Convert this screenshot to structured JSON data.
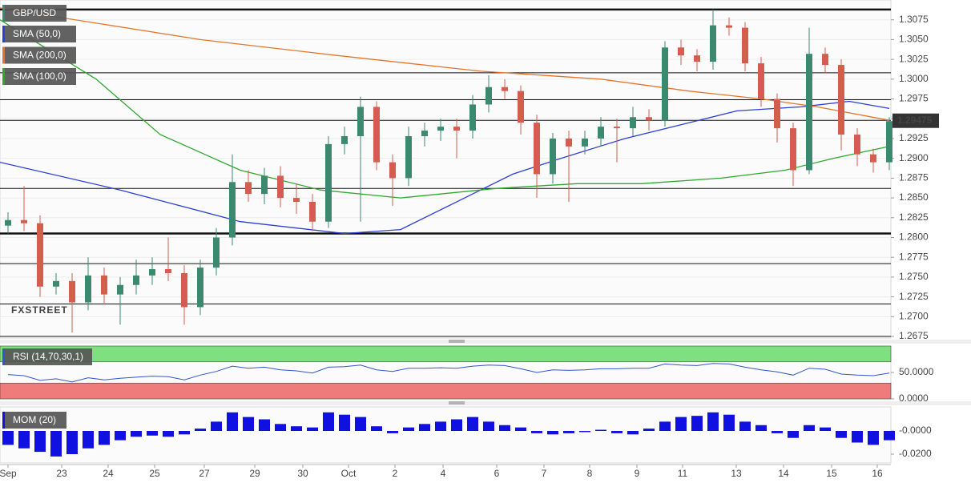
{
  "chart_data": {
    "type": "candlestick",
    "title": "GBP/USD",
    "watermark": "FXSTREET",
    "bull_color": "#3b8a6f",
    "bear_color": "#d55d4f",
    "open": [
      1.2815,
      1.2822,
      1.2818,
      1.2738,
      1.2745,
      1.2718,
      1.2752,
      1.2728,
      1.274,
      1.2752,
      1.276,
      1.2755,
      1.2712,
      1.2762,
      1.28,
      1.287,
      1.2855,
      1.2878,
      1.285,
      1.2845,
      1.282,
      1.2918,
      1.2928,
      1.2965,
      1.2895,
      1.2875,
      1.2928,
      1.2935,
      1.294,
      1.2935,
      1.2968,
      1.299,
      1.2985,
      1.2945,
      1.288,
      1.2925,
      1.2915,
      1.2925,
      1.294,
      1.2938,
      1.2952,
      1.2948,
      1.304,
      1.303,
      1.3022,
      1.3068,
      1.3065,
      1.302,
      1.2975,
      1.2938,
      1.2885,
      1.3032,
      1.3018,
      1.293,
      1.2905,
      1.2895
    ],
    "high": [
      1.2832,
      1.2865,
      1.2828,
      1.2755,
      1.2755,
      1.2775,
      1.2762,
      1.275,
      1.2772,
      1.2775,
      1.28,
      1.2765,
      1.2772,
      1.2812,
      1.2905,
      1.2885,
      1.2888,
      1.289,
      1.2868,
      1.2855,
      1.2928,
      1.294,
      1.2978,
      1.2972,
      1.2905,
      1.294,
      1.2945,
      1.295,
      1.295,
      1.298,
      1.3005,
      1.3,
      1.2992,
      1.2955,
      1.2932,
      1.2935,
      1.2935,
      1.2952,
      1.295,
      1.2965,
      1.2962,
      1.3048,
      1.305,
      1.3038,
      1.3088,
      1.3078,
      1.3072,
      1.3028,
      1.2982,
      1.2945,
      1.3065,
      1.304,
      1.3025,
      1.2938,
      1.2912,
      1.2952
    ],
    "low": [
      1.2805,
      1.2808,
      1.2725,
      1.2728,
      1.268,
      1.2708,
      1.2715,
      1.269,
      1.2728,
      1.274,
      1.2745,
      1.269,
      1.2702,
      1.2752,
      1.279,
      1.2845,
      1.2842,
      1.2838,
      1.283,
      1.2808,
      1.2812,
      1.2905,
      1.282,
      1.2885,
      1.284,
      1.2865,
      1.2915,
      1.2922,
      1.29,
      1.2925,
      1.2958,
      1.2975,
      1.293,
      1.285,
      1.2868,
      1.2845,
      1.2905,
      1.2915,
      1.2895,
      1.2928,
      1.2935,
      1.294,
      1.3018,
      1.301,
      1.3012,
      1.3055,
      1.301,
      1.2965,
      1.292,
      1.2865,
      1.288,
      1.3008,
      1.291,
      1.289,
      1.2882,
      1.2885
    ],
    "close": [
      1.2822,
      1.2818,
      1.2738,
      1.2745,
      1.2718,
      1.2752,
      1.2728,
      1.274,
      1.2752,
      1.276,
      1.2755,
      1.2712,
      1.2762,
      1.28,
      1.287,
      1.2855,
      1.2878,
      1.285,
      1.2845,
      1.282,
      1.2918,
      1.2928,
      1.2965,
      1.2895,
      1.2875,
      1.2928,
      1.2935,
      1.294,
      1.2935,
      1.2968,
      1.299,
      1.2985,
      1.2945,
      1.288,
      1.2925,
      1.2915,
      1.2925,
      1.294,
      1.2938,
      1.2952,
      1.2948,
      1.304,
      1.303,
      1.3022,
      1.3068,
      1.3065,
      1.302,
      1.2975,
      1.2938,
      1.2885,
      1.3032,
      1.3018,
      1.293,
      1.2905,
      1.2895,
      1.2947
    ],
    "series": [
      {
        "name": "SMA (50,0)",
        "color": "#2b3fd6",
        "x": [
          -0.5,
          7,
          14.5,
          21,
          24.5,
          28.5,
          31.5,
          34.5,
          38.5,
          42.5,
          45.5,
          49.5,
          52.5,
          55
        ],
        "values": [
          1.2895,
          1.286,
          1.282,
          1.2805,
          1.281,
          1.285,
          1.288,
          1.29,
          1.2925,
          1.2945,
          1.296,
          1.2965,
          1.2972,
          1.2963
        ]
      },
      {
        "name": "SMA (200,0)",
        "color": "#e8742a",
        "x": [
          -0.5,
          12,
          20.5,
          29.5,
          37,
          42.5,
          47,
          50.5,
          55
        ],
        "values": [
          1.309,
          1.305,
          1.303,
          1.301,
          1.3,
          1.2985,
          1.2975,
          1.2965,
          1.2948
        ]
      },
      {
        "name": "SMA (100,0)",
        "color": "#2ea82e",
        "x": [
          -0.5,
          5.5,
          9.5,
          14.5,
          19.5,
          24.5,
          30.5,
          35.5,
          39.5,
          44.5,
          48.5,
          51.5,
          55
        ],
        "values": [
          1.3075,
          1.3,
          1.293,
          1.2885,
          1.286,
          1.285,
          1.2862,
          1.2868,
          1.2868,
          1.2875,
          1.2885,
          1.29,
          1.2915
        ]
      }
    ],
    "levels": [
      {
        "value": 1.3088,
        "bold": true
      },
      {
        "value": 1.3008,
        "bold": false
      },
      {
        "value": 1.2974,
        "bold": false
      },
      {
        "value": 1.2948,
        "bold": false
      },
      {
        "value": 1.2862,
        "bold": false
      },
      {
        "value": 1.2805,
        "bold": true
      },
      {
        "value": 1.2767,
        "bold": false
      },
      {
        "value": 1.2716,
        "bold": false
      },
      {
        "value": 1.2675,
        "bold": false
      }
    ],
    "last_price": {
      "value": 1.29475,
      "label": "1.29475"
    },
    "ylim": [
      1.2673,
      1.31
    ],
    "yticks": [
      1.3075,
      {
        "value": 1.305,
        "label": "1.3050"
      },
      1.3025,
      {
        "value": 1.3,
        "label": "1.3000"
      },
      1.2975,
      {
        "value": 1.295,
        "label": "1.2950"
      },
      1.2925,
      {
        "value": 1.29,
        "label": "1.2900"
      },
      1.2875,
      {
        "value": 1.285,
        "label": "1.2850"
      },
      1.2825,
      {
        "value": 1.28,
        "label": "1.2800"
      },
      1.2775,
      {
        "value": 1.275,
        "label": "1.2750"
      },
      1.2725,
      {
        "value": 1.27,
        "label": "1.2700"
      },
      1.2675
    ],
    "grid": true,
    "x_labels": [
      {
        "value": 0,
        "label": "Sep"
      },
      {
        "value": 3.35,
        "label": "23"
      },
      {
        "value": 6.25,
        "label": "24"
      },
      {
        "value": 9.15,
        "label": "25"
      },
      {
        "value": 12.25,
        "label": "27"
      },
      {
        "value": 15.4,
        "label": "29"
      },
      {
        "value": 18.4,
        "label": "30"
      },
      {
        "value": 21.25,
        "label": "Oct"
      },
      {
        "value": 24.15,
        "label": "2"
      },
      {
        "value": 27.15,
        "label": "4"
      },
      {
        "value": 30.5,
        "label": "6"
      },
      {
        "value": 33.45,
        "label": "7"
      },
      {
        "value": 36.3,
        "label": "8"
      },
      {
        "value": 39.25,
        "label": "9"
      },
      {
        "value": 42.1,
        "label": "11"
      },
      {
        "value": 45.45,
        "label": "13"
      },
      {
        "value": 48.4,
        "label": "14"
      },
      {
        "value": 51.4,
        "label": "15"
      },
      {
        "value": 54.25,
        "label": "16"
      }
    ],
    "rsi": {
      "name": "RSI (14,70,30,1)",
      "color": "#3355cc",
      "upper_color": "#7ee07e",
      "lower_color": "#f07b7b",
      "upper": 70,
      "lower": 30,
      "values": [
        46,
        44,
        35,
        38,
        32,
        40,
        36,
        39,
        41,
        43,
        42,
        36,
        45,
        52,
        62,
        58,
        60,
        55,
        53,
        49,
        60,
        61,
        64,
        55,
        52,
        58,
        58,
        59,
        58,
        62,
        64,
        63,
        57,
        50,
        55,
        54,
        55,
        57,
        57,
        58,
        58,
        66,
        64,
        63,
        67,
        66,
        60,
        55,
        51,
        45,
        58,
        56,
        47,
        45,
        44,
        49
      ],
      "ylim": [
        0,
        100
      ],
      "yticks": [
        {
          "value": 50,
          "label": "50.0000"
        },
        {
          "value": 0,
          "label": "0.0000"
        }
      ]
    },
    "mom": {
      "name": "MOM (20)",
      "color": "#1010e0",
      "values": [
        -0.012,
        -0.015,
        -0.018,
        -0.022,
        -0.02,
        -0.015,
        -0.012,
        -0.008,
        -0.005,
        -0.004,
        -0.005,
        -0.003,
        0.002,
        0.008,
        0.016,
        0.012,
        0.01,
        0.006,
        0.004,
        0.003,
        0.016,
        0.014,
        0.012,
        0.004,
        -0.002,
        0.003,
        0.006,
        0.008,
        0.01,
        0.012,
        0.008,
        0.005,
        0.003,
        -0.002,
        -0.003,
        -0.002,
        -0.001,
        0.001,
        -0.002,
        -0.003,
        0.002,
        0.008,
        0.012,
        0.013,
        0.016,
        0.014,
        0.008,
        0.005,
        -0.002,
        -0.006,
        0.005,
        0.003,
        -0.006,
        -0.01,
        -0.012,
        -0.008
      ],
      "ylim": [
        -0.0276,
        0.0207
      ],
      "yticks": [
        {
          "value": 0,
          "label": "-0.0000"
        },
        {
          "value": -0.02,
          "label": "-0.0200"
        }
      ]
    }
  }
}
